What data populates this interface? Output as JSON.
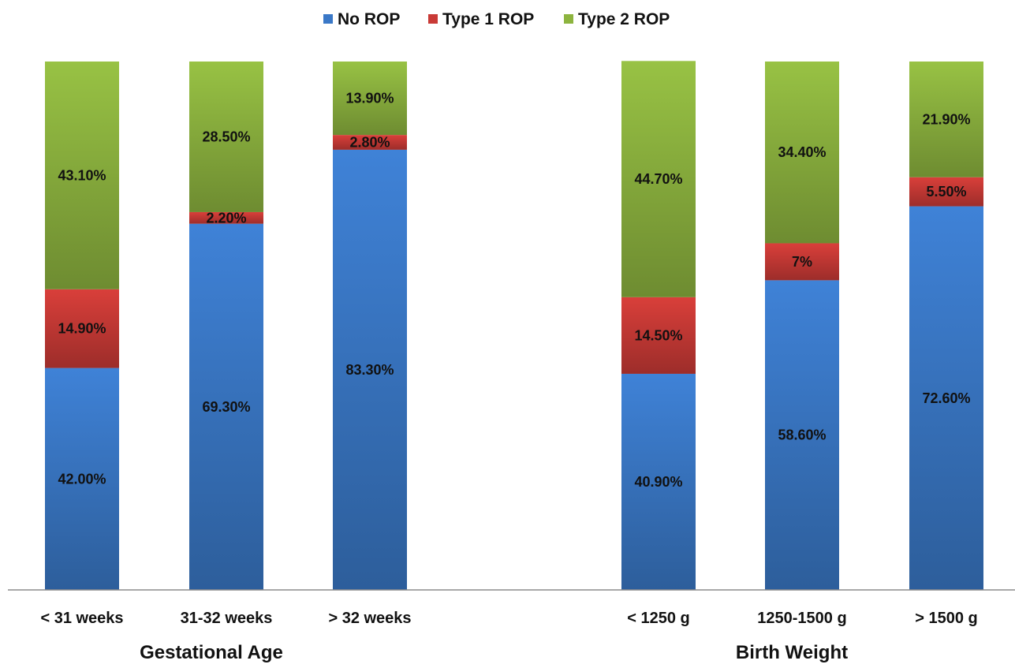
{
  "chart_data": {
    "type": "bar",
    "stacked": true,
    "grid": false,
    "legend_position": "top-center",
    "ylim": [
      0,
      100
    ],
    "title": "",
    "ylabel": "",
    "groups": [
      {
        "label": "Gestational Age",
        "categories": [
          "< 31 weeks",
          "31-32 weeks",
          "> 32 weeks"
        ]
      },
      {
        "label": "Birth Weight",
        "categories": [
          "< 1250 g",
          "1250-1500 g",
          "> 1500 g"
        ]
      }
    ],
    "categories": [
      "< 31 weeks",
      "31-32 weeks",
      "> 32 weeks",
      "< 1250 g",
      "1250-1500 g",
      "> 1500 g"
    ],
    "series": [
      {
        "name": "No ROP",
        "color": "#3A78C7",
        "values": [
          42.0,
          69.3,
          83.3,
          40.9,
          58.6,
          72.6
        ],
        "labels": [
          "42.00%",
          "69.30%",
          "83.30%",
          "40.90%",
          "58.60%",
          "72.60%"
        ]
      },
      {
        "name": "Type 1 ROP",
        "color": "#C93A36",
        "values": [
          14.9,
          2.2,
          2.8,
          14.5,
          7.0,
          5.5
        ],
        "labels": [
          "14.90%",
          "2.20%",
          "2.80%",
          "14.50%",
          "7%",
          "5.50%"
        ]
      },
      {
        "name": "Type 2 ROP",
        "color": "#8DB43F",
        "values": [
          43.1,
          28.5,
          13.9,
          44.7,
          34.4,
          21.9
        ],
        "labels": [
          "43.10%",
          "28.50%",
          "13.90%",
          "44.70%",
          "34.40%",
          "21.90%"
        ]
      }
    ]
  }
}
